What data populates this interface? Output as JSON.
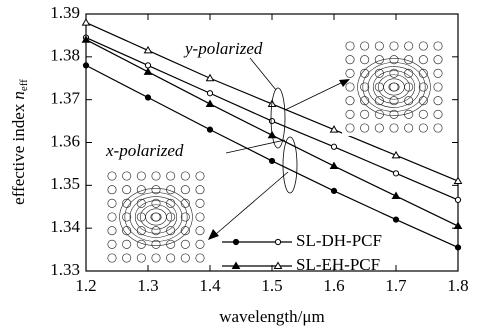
{
  "chart_data": {
    "type": "line",
    "x_label": "wavelength/μm",
    "y_label": "effective index",
    "y_label_symbol": "n",
    "y_label_subscript": "eff",
    "annotations": [
      "y-polarized",
      "x-polarized"
    ],
    "x": [
      1.2,
      1.3,
      1.4,
      1.5,
      1.6,
      1.7,
      1.8
    ],
    "series": [
      {
        "name": "SL-DH-PCF",
        "color": "#000000",
        "marker": "circle",
        "x_polarized": [
          1.378,
          1.3705,
          1.363,
          1.3557,
          1.3487,
          1.342,
          1.3355
        ],
        "y_polarized": [
          1.3845,
          1.378,
          1.3715,
          1.365,
          1.359,
          1.3528,
          1.3466
        ]
      },
      {
        "name": "SL-EH-PCF",
        "color": "#000000",
        "marker": "triangle",
        "x_polarized": [
          1.384,
          1.3765,
          1.369,
          1.3617,
          1.3545,
          1.3475,
          1.3405
        ],
        "y_polarized": [
          1.388,
          1.3815,
          1.375,
          1.369,
          1.363,
          1.357,
          1.351
        ]
      }
    ],
    "xlim": [
      1.2,
      1.8
    ],
    "xticks": [
      1.2,
      1.3,
      1.4,
      1.5,
      1.6,
      1.7,
      1.8
    ],
    "ylim": [
      1.33,
      1.39
    ],
    "yticks": [
      1.33,
      1.34,
      1.35,
      1.36,
      1.37,
      1.38,
      1.39
    ],
    "grid": false
  }
}
